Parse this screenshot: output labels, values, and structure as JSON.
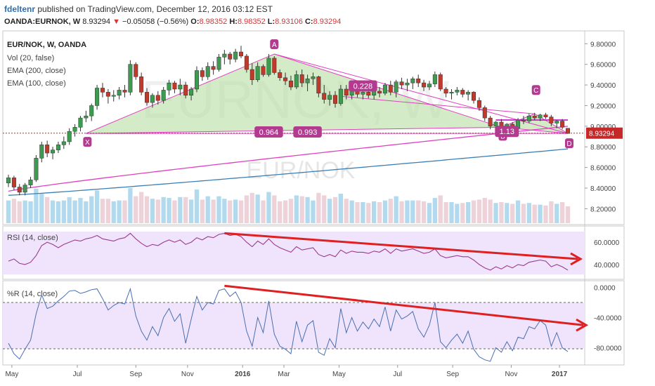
{
  "header": {
    "author": "fdeltenr",
    "published_text": "published on TradingView.com, December 12, 2016 03:12 EST",
    "symbol": "OANDA:EURNOK, W",
    "last": "8.93294",
    "change": "−0.05058 (−0.56%)",
    "open_label": "O:",
    "open": "8.98352",
    "high_label": "H:",
    "high": "8.98352",
    "low_label": "L:",
    "low": "8.93106",
    "close_label": "C:",
    "close": "8.93294"
  },
  "legend": {
    "title": "EUR/NOK, W, OANDA",
    "vol": "Vol (20, false)",
    "ema200": "EMA (200, close)",
    "ema100": "EMA (100, close)"
  },
  "watermark": {
    "big": "EURNOK, W",
    "small": "EUR/NOK"
  },
  "colors": {
    "bull": "#3d9b4f",
    "bear": "#c0392b",
    "pattern_fill": "#b7dda3",
    "pattern_line": "#e040c0",
    "ema100": "#e040c0",
    "ema200": "#3b7fb5",
    "rsi_line": "#9c3b8f",
    "wr_line": "#4a6fb0",
    "panel_fill": "#efe4fb",
    "arrow": "#e02020",
    "price_tag": "#c62828",
    "label_bg": "#b23b8f"
  },
  "price_axis": {
    "ticks": [
      "9.80000",
      "9.60000",
      "9.40000",
      "9.20000",
      "9.00000",
      "8.80000",
      "8.60000",
      "8.40000",
      "8.20000"
    ],
    "last_tag": "8.93294"
  },
  "time_axis": {
    "labels": [
      "May",
      "Jul",
      "Sep",
      "Nov",
      "2016",
      "Mar",
      "May",
      "Jul",
      "Sep",
      "Nov",
      "2017"
    ]
  },
  "pattern": {
    "points": [
      "X",
      "A",
      "B",
      "C",
      "D"
    ],
    "ratios": [
      "0.228",
      "0.964",
      "0.993",
      "1.13"
    ]
  },
  "rsi": {
    "title": "RSI (14, close)",
    "ticks": [
      "60.0000",
      "40.0000"
    ]
  },
  "williams": {
    "title": "%R (14, close)",
    "ticks": [
      "0.0000",
      "-40.0000",
      "-80.0000"
    ]
  },
  "chart_data": {
    "type": "candlestick",
    "title": "EUR/NOK, W, OANDA",
    "y_range": [
      8.06,
      9.87
    ],
    "y_ticks": [
      9.8,
      9.6,
      9.4,
      9.2,
      9.0,
      8.8,
      8.6,
      8.4,
      8.2
    ],
    "x_labels": [
      "May",
      "Jul",
      "Sep",
      "Nov",
      "2016",
      "Mar",
      "May",
      "Jul",
      "Sep",
      "Nov",
      "2017"
    ],
    "last_price": 8.93294,
    "ohlc": [
      [
        8.45,
        8.53,
        8.41,
        8.5
      ],
      [
        8.5,
        8.52,
        8.38,
        8.41
      ],
      [
        8.41,
        8.44,
        8.33,
        8.36
      ],
      [
        8.36,
        8.45,
        8.33,
        8.43
      ],
      [
        8.43,
        8.51,
        8.4,
        8.48
      ],
      [
        8.48,
        8.72,
        8.46,
        8.69
      ],
      [
        8.69,
        8.85,
        8.65,
        8.82
      ],
      [
        8.82,
        8.86,
        8.7,
        8.74
      ],
      [
        8.74,
        8.8,
        8.68,
        8.77
      ],
      [
        8.77,
        8.85,
        8.74,
        8.82
      ],
      [
        8.82,
        8.9,
        8.78,
        8.85
      ],
      [
        8.85,
        8.98,
        8.82,
        8.95
      ],
      [
        8.95,
        9.02,
        8.9,
        8.99
      ],
      [
        8.99,
        9.1,
        8.95,
        9.08
      ],
      [
        9.08,
        9.15,
        9.04,
        9.1
      ],
      [
        9.1,
        9.22,
        9.05,
        9.2
      ],
      [
        9.2,
        9.4,
        9.16,
        9.37
      ],
      [
        9.37,
        9.42,
        9.28,
        9.33
      ],
      [
        9.33,
        9.36,
        9.22,
        9.29
      ],
      [
        9.29,
        9.35,
        9.24,
        9.3
      ],
      [
        9.3,
        9.38,
        9.26,
        9.35
      ],
      [
        9.35,
        9.4,
        9.28,
        9.33
      ],
      [
        9.33,
        9.64,
        9.3,
        9.6
      ],
      [
        9.6,
        9.62,
        9.45,
        9.48
      ],
      [
        9.48,
        9.52,
        9.3,
        9.33
      ],
      [
        9.33,
        9.37,
        9.2,
        9.23
      ],
      [
        9.23,
        9.32,
        9.18,
        9.3
      ],
      [
        9.3,
        9.34,
        9.21,
        9.25
      ],
      [
        9.25,
        9.38,
        9.22,
        9.35
      ],
      [
        9.35,
        9.45,
        9.3,
        9.42
      ],
      [
        9.42,
        9.44,
        9.32,
        9.36
      ],
      [
        9.36,
        9.46,
        9.3,
        9.4
      ],
      [
        9.4,
        9.43,
        9.27,
        9.3
      ],
      [
        9.3,
        9.38,
        9.25,
        9.36
      ],
      [
        9.36,
        9.58,
        9.33,
        9.54
      ],
      [
        9.54,
        9.57,
        9.44,
        9.48
      ],
      [
        9.48,
        9.62,
        9.45,
        9.58
      ],
      [
        9.58,
        9.63,
        9.5,
        9.55
      ],
      [
        9.55,
        9.7,
        9.53,
        9.67
      ],
      [
        9.67,
        9.74,
        9.6,
        9.7
      ],
      [
        9.7,
        9.72,
        9.6,
        9.65
      ],
      [
        9.65,
        9.75,
        9.62,
        9.72
      ],
      [
        9.72,
        9.78,
        9.66,
        9.68
      ],
      [
        9.68,
        9.7,
        9.52,
        9.55
      ],
      [
        9.55,
        9.61,
        9.4,
        9.45
      ],
      [
        9.45,
        9.62,
        9.43,
        9.58
      ],
      [
        9.58,
        9.6,
        9.48,
        9.5
      ],
      [
        9.5,
        9.7,
        9.48,
        9.66
      ],
      [
        9.66,
        9.68,
        9.5,
        9.52
      ],
      [
        9.52,
        9.55,
        9.44,
        9.47
      ],
      [
        9.47,
        9.52,
        9.4,
        9.44
      ],
      [
        9.44,
        9.49,
        9.35,
        9.38
      ],
      [
        9.38,
        9.54,
        9.36,
        9.5
      ],
      [
        9.5,
        9.55,
        9.38,
        9.42
      ],
      [
        9.42,
        9.5,
        9.34,
        9.46
      ],
      [
        9.46,
        9.52,
        9.4,
        9.48
      ],
      [
        9.48,
        9.49,
        9.28,
        9.32
      ],
      [
        9.32,
        9.4,
        9.22,
        9.26
      ],
      [
        9.26,
        9.34,
        9.2,
        9.3
      ],
      [
        9.3,
        9.34,
        9.18,
        9.22
      ],
      [
        9.22,
        9.4,
        9.2,
        9.36
      ],
      [
        9.36,
        9.4,
        9.26,
        9.3
      ],
      [
        9.3,
        9.38,
        9.26,
        9.35
      ],
      [
        9.35,
        9.38,
        9.28,
        9.31
      ],
      [
        9.31,
        9.36,
        9.26,
        9.33
      ],
      [
        9.33,
        9.36,
        9.27,
        9.3
      ],
      [
        9.3,
        9.37,
        9.26,
        9.34
      ],
      [
        9.34,
        9.38,
        9.28,
        9.32
      ],
      [
        9.32,
        9.42,
        9.3,
        9.4
      ],
      [
        9.4,
        9.44,
        9.3,
        9.33
      ],
      [
        9.33,
        9.45,
        9.28,
        9.43
      ],
      [
        9.43,
        9.47,
        9.36,
        9.4
      ],
      [
        9.4,
        9.46,
        9.34,
        9.42
      ],
      [
        9.42,
        9.48,
        9.36,
        9.46
      ],
      [
        9.46,
        9.5,
        9.38,
        9.42
      ],
      [
        9.42,
        9.45,
        9.34,
        9.38
      ],
      [
        9.38,
        9.44,
        9.35,
        9.41
      ],
      [
        9.41,
        9.53,
        9.38,
        9.5
      ],
      [
        9.5,
        9.52,
        9.34,
        9.36
      ],
      [
        9.36,
        9.38,
        9.28,
        9.32
      ],
      [
        9.32,
        9.36,
        9.26,
        9.33
      ],
      [
        9.33,
        9.38,
        9.3,
        9.35
      ],
      [
        9.35,
        9.37,
        9.28,
        9.31
      ],
      [
        9.31,
        9.35,
        9.25,
        9.33
      ],
      [
        9.33,
        9.34,
        9.22,
        9.25
      ],
      [
        9.25,
        9.28,
        9.15,
        9.18
      ],
      [
        9.18,
        9.2,
        9.05,
        9.08
      ],
      [
        9.08,
        9.1,
        8.97,
        9.0
      ],
      [
        9.0,
        9.05,
        8.96,
        9.04
      ],
      [
        9.04,
        9.07,
        8.97,
        8.99
      ],
      [
        8.99,
        9.03,
        8.94,
        9.02
      ],
      [
        9.02,
        9.04,
        8.96,
        8.98
      ],
      [
        8.98,
        9.08,
        8.96,
        9.06
      ],
      [
        9.06,
        9.1,
        9.02,
        9.05
      ],
      [
        9.05,
        9.12,
        9.03,
        9.1
      ],
      [
        9.1,
        9.13,
        9.06,
        9.08
      ],
      [
        9.08,
        9.12,
        9.05,
        9.11
      ],
      [
        9.11,
        9.13,
        9.07,
        9.09
      ],
      [
        9.09,
        9.11,
        9.0,
        9.03
      ],
      [
        9.03,
        9.06,
        8.98,
        9.05
      ],
      [
        9.05,
        9.07,
        8.97,
        8.99
      ],
      [
        8.98,
        8.98,
        8.93,
        8.93
      ]
    ],
    "ema100_range": [
      8.37,
      9.0
    ],
    "ema200_range": [
      8.33,
      8.78
    ],
    "volume_profile": "light series below price, same bar count",
    "rsi": {
      "name": "RSI (14, close)",
      "y_range": [
        28,
        72
      ],
      "values": [
        43,
        45,
        41,
        40,
        42,
        48,
        57,
        60,
        58,
        55,
        58,
        60,
        62,
        61,
        63,
        64,
        66,
        63,
        62,
        61,
        63,
        64,
        68,
        63,
        59,
        56,
        58,
        57,
        60,
        62,
        60,
        62,
        58,
        60,
        64,
        62,
        65,
        64,
        67,
        68,
        66,
        67,
        65,
        60,
        56,
        61,
        58,
        63,
        58,
        55,
        53,
        51,
        56,
        53,
        54,
        55,
        49,
        47,
        49,
        47,
        53,
        50,
        52,
        51,
        51,
        50,
        52,
        51,
        54,
        50,
        54,
        52,
        53,
        54,
        52,
        50,
        51,
        54,
        48,
        46,
        47,
        48,
        47,
        47,
        44,
        40,
        37,
        35,
        38,
        36,
        39,
        37,
        40,
        39,
        42,
        43,
        44,
        43,
        38,
        40,
        38,
        35
      ]
    },
    "williams_r": {
      "name": "%R (14, close)",
      "y_range": [
        -100,
        6
      ],
      "levels": [
        -20,
        -80
      ],
      "values": [
        -74,
        -88,
        -95,
        -82,
        -70,
        -35,
        -10,
        -28,
        -25,
        -18,
        -12,
        -5,
        -4,
        -8,
        -6,
        -3,
        -2,
        -15,
        -30,
        -24,
        -20,
        -22,
        -2,
        -38,
        -58,
        -70,
        -52,
        -64,
        -40,
        -28,
        -45,
        -35,
        -74,
        -42,
        -12,
        -30,
        -20,
        -22,
        -4,
        -2,
        -12,
        -6,
        -20,
        -58,
        -78,
        -40,
        -60,
        -18,
        -62,
        -78,
        -82,
        -88,
        -45,
        -72,
        -50,
        -44,
        -86,
        -90,
        -68,
        -80,
        -28,
        -60,
        -40,
        -58,
        -46,
        -55,
        -42,
        -52,
        -26,
        -58,
        -30,
        -42,
        -38,
        -32,
        -55,
        -66,
        -50,
        -20,
        -72,
        -80,
        -70,
        -62,
        -74,
        -58,
        -82,
        -92,
        -96,
        -98,
        -80,
        -86,
        -72,
        -84,
        -66,
        -68,
        -52,
        -55,
        -44,
        -50,
        -78,
        -60,
        -80,
        -85
      ]
    }
  }
}
